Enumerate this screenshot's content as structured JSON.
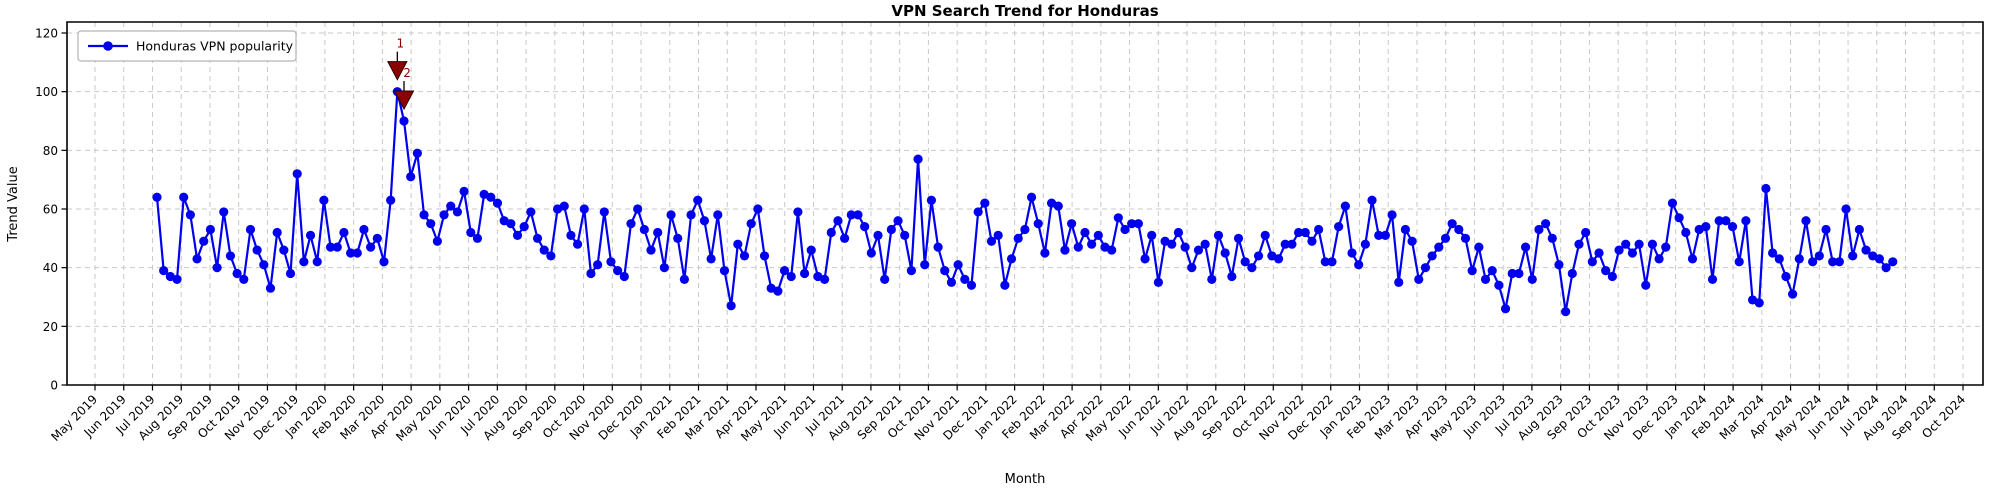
{
  "figure": {
    "title": "VPN Search Trend for Honduras",
    "xlabel": "Month",
    "ylabel": "Trend Value"
  },
  "legend": {
    "label": "Honduras VPN popularity"
  },
  "chart_data": {
    "type": "line",
    "title": "VPN Search Trend for Honduras",
    "xlabel": "Month",
    "ylabel": "Trend Value",
    "series_name": "Honduras VPN popularity",
    "sampling": "weekly",
    "ylim": [
      0,
      124
    ],
    "y_ticks": [
      0,
      20,
      40,
      60,
      80,
      100,
      120
    ],
    "grid": "dashed",
    "legend_position": "upper-left",
    "line_color": "#0000ee",
    "marker": "circle",
    "annotation_color": "#8b0000",
    "x_tick_labels": [
      "May 2019",
      "Jun 2019",
      "Jul 2019",
      "Aug 2019",
      "Sep 2019",
      "Oct 2019",
      "Nov 2019",
      "Dec 2019",
      "Jan 2020",
      "Feb 2020",
      "Mar 2020",
      "Apr 2020",
      "May 2020",
      "Jun 2020",
      "Jul 2020",
      "Aug 2020",
      "Sep 2020",
      "Oct 2020",
      "Nov 2020",
      "Dec 2020",
      "Jan 2021",
      "Feb 2021",
      "Mar 2021",
      "Apr 2021",
      "May 2021",
      "Jun 2021",
      "Jul 2021",
      "Aug 2021",
      "Sep 2021",
      "Oct 2021",
      "Nov 2021",
      "Dec 2021",
      "Jan 2022",
      "Feb 2022",
      "Mar 2022",
      "Apr 2022",
      "May 2022",
      "Jun 2022",
      "Jul 2022",
      "Aug 2022",
      "Sep 2022",
      "Oct 2022",
      "Nov 2022",
      "Dec 2022",
      "Jan 2023",
      "Feb 2023",
      "Mar 2023",
      "Apr 2023",
      "May 2023",
      "Jun 2023",
      "Jul 2023",
      "Aug 2023",
      "Sep 2023",
      "Oct 2023",
      "Nov 2023",
      "Dec 2023",
      "Jan 2024",
      "Feb 2024",
      "Mar 2024",
      "Apr 2024",
      "May 2024",
      "Jun 2024",
      "Jul 2024",
      "Aug 2024",
      "Sep 2024",
      "Oct 2024"
    ],
    "values": [
      64,
      39,
      37,
      36,
      64,
      58,
      43,
      49,
      53,
      40,
      59,
      44,
      38,
      36,
      53,
      46,
      41,
      33,
      52,
      46,
      38,
      72,
      42,
      51,
      42,
      63,
      47,
      47,
      52,
      45,
      45,
      53,
      47,
      50,
      42,
      63,
      100,
      90,
      71,
      79,
      58,
      55,
      49,
      58,
      61,
      59,
      66,
      52,
      50,
      65,
      64,
      62,
      56,
      55,
      51,
      54,
      59,
      50,
      46,
      44,
      60,
      61,
      51,
      48,
      60,
      38,
      41,
      59,
      42,
      39,
      37,
      55,
      60,
      53,
      46,
      52,
      40,
      58,
      50,
      36,
      58,
      63,
      56,
      43,
      58,
      39,
      27,
      48,
      44,
      55,
      60,
      44,
      33,
      32,
      39,
      37,
      59,
      38,
      46,
      37,
      36,
      52,
      56,
      50,
      58,
      58,
      54,
      45,
      51,
      36,
      53,
      56,
      51,
      39,
      77,
      41,
      63,
      47,
      39,
      35,
      41,
      36,
      34,
      59,
      62,
      49,
      51,
      34,
      43,
      50,
      53,
      64,
      55,
      45,
      62,
      61,
      46,
      55,
      47,
      52,
      48,
      51,
      47,
      46,
      57,
      53,
      55,
      55,
      43,
      51,
      35,
      49,
      48,
      52,
      47,
      40,
      46,
      48,
      36,
      51,
      45,
      37,
      50,
      42,
      40,
      44,
      51,
      44,
      43,
      48,
      48,
      52,
      52,
      49,
      53,
      42,
      42,
      54,
      61,
      45,
      41,
      48,
      63,
      51,
      51,
      58,
      35,
      53,
      49,
      36,
      40,
      44,
      47,
      50,
      55,
      53,
      50,
      39,
      47,
      36,
      39,
      34,
      26,
      38,
      38,
      47,
      36,
      53,
      55,
      50,
      41,
      25,
      38,
      48,
      52,
      42,
      45,
      39,
      37,
      46,
      48,
      45,
      48,
      34,
      48,
      43,
      47,
      62,
      57,
      52,
      43,
      53,
      54,
      36,
      56,
      56,
      54,
      42,
      56,
      29,
      28,
      67,
      45,
      43,
      37,
      31,
      43,
      56,
      42,
      44,
      53,
      42,
      42,
      60,
      44,
      53,
      46,
      44,
      43,
      40,
      42
    ],
    "annotations": [
      {
        "point_index": 36,
        "label": "1",
        "value": 100
      },
      {
        "point_index": 37,
        "label": "2",
        "value": 90
      }
    ]
  }
}
